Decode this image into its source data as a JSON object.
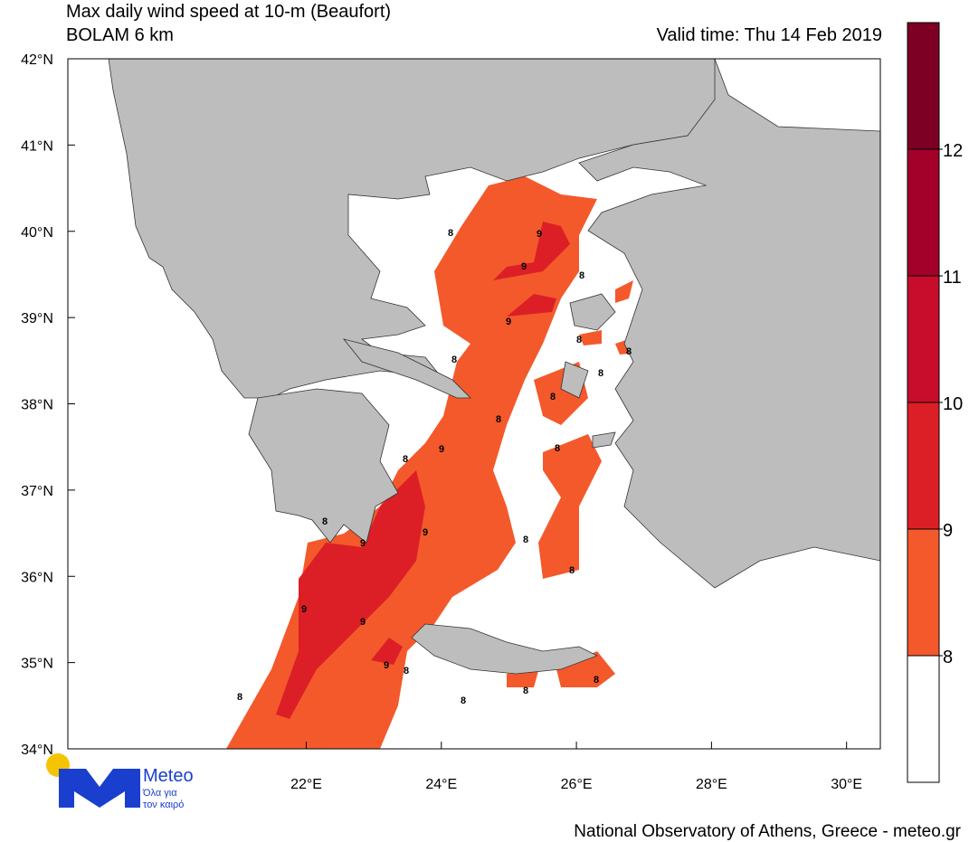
{
  "header": {
    "title": "Max daily wind speed at 10-m (Beaufort)",
    "model": "BOLAM 6 km",
    "valid_time": "Valid time: Thu 14 Feb 2019"
  },
  "map": {
    "lon_range": [
      18.47,
      30.5
    ],
    "lat_range": [
      34,
      42
    ],
    "lon_ticks": [
      {
        "value": 22,
        "label": "22°E"
      },
      {
        "value": 24,
        "label": "24°E"
      },
      {
        "value": 26,
        "label": "26°E"
      },
      {
        "value": 28,
        "label": "28°E"
      },
      {
        "value": 30,
        "label": "30°E"
      }
    ],
    "lat_ticks": [
      {
        "value": 34,
        "label": "34°N"
      },
      {
        "value": 35,
        "label": "35°N"
      },
      {
        "value": 36,
        "label": "36°N"
      },
      {
        "value": 37,
        "label": "37°N"
      },
      {
        "value": 38,
        "label": "38°N"
      },
      {
        "value": 39,
        "label": "39°N"
      },
      {
        "value": 40,
        "label": "40°N"
      },
      {
        "value": 41,
        "label": "41°N"
      },
      {
        "value": 42,
        "label": "42°N"
      }
    ],
    "contour_labels": [
      "8",
      "9",
      "9",
      "8",
      "9",
      "8",
      "8",
      "8",
      "8",
      "8",
      "8",
      "9",
      "8",
      "8",
      "8",
      "9",
      "9",
      "8",
      "8",
      "9",
      "9",
      "9",
      "8",
      "8",
      "8",
      "8",
      "8"
    ]
  },
  "colorbar": {
    "levels": [
      7,
      8,
      9,
      10,
      11,
      12,
      13
    ],
    "colors": [
      "#ffffff",
      "#f4592b",
      "#dc1f26",
      "#c80d2c",
      "#a3002a",
      "#7d0024"
    ],
    "ticks": [
      8,
      9,
      10,
      11,
      12
    ]
  },
  "logo": {
    "name": "Meteo",
    "tagline_1": "Όλα για",
    "tagline_2": "τον καιρό"
  },
  "footer": "National Observatory of Athens, Greece - meteo.gr"
}
